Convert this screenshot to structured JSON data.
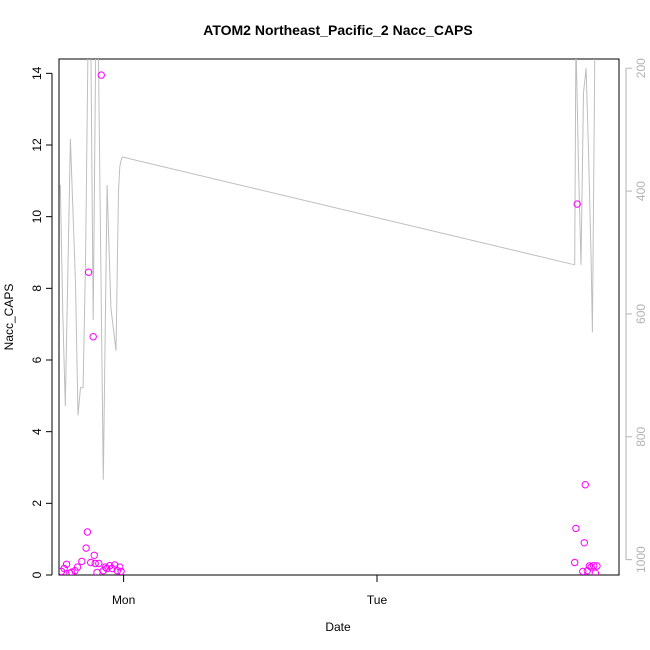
{
  "chart_data": {
    "type": "scatter",
    "title": "ATOM2 Northeast_Pacific_2 Nacc_CAPS",
    "xlabel": "Date",
    "ylabel": "Nacc_CAPS",
    "x_ticks": [
      "Mon",
      "Tue"
    ],
    "y_ticks": [
      "0",
      "2",
      "4",
      "6",
      "8",
      "10",
      "12",
      "14"
    ],
    "y_right_ticks": [
      "200",
      "400",
      "600",
      "800",
      "1000"
    ],
    "xlim": [
      -0.255,
      1.955
    ],
    "ylim": [
      0,
      14.4
    ],
    "y_right_lim": [
      1025,
      185
    ],
    "point_color": "#ff00ff",
    "line_color": "#bebebe",
    "series": [
      {
        "kind": "points",
        "axis": "left",
        "x": [
          -0.245,
          -0.235,
          -0.225,
          -0.212,
          -0.205,
          -0.192,
          -0.182,
          -0.165,
          -0.148,
          -0.143,
          -0.138,
          -0.13,
          -0.12,
          -0.116,
          -0.112,
          -0.105,
          -0.098,
          -0.088,
          -0.08,
          -0.072,
          -0.066,
          -0.055,
          -0.045,
          -0.035,
          -0.025,
          -0.015,
          -0.01,
          1.78,
          1.785,
          1.79,
          1.812,
          1.818,
          1.822,
          1.83,
          1.838,
          1.845,
          1.855,
          1.862,
          1.868
        ],
        "y": [
          0.1,
          0.18,
          0.3,
          0.05,
          0.08,
          0.12,
          0.22,
          0.38,
          0.75,
          1.2,
          8.45,
          0.35,
          6.65,
          0.55,
          0.32,
          0.07,
          0.32,
          13.95,
          0.12,
          0.22,
          0.18,
          0.26,
          0.18,
          0.28,
          0.12,
          0.22,
          0.1,
          0.35,
          1.3,
          10.35,
          0.1,
          0.9,
          2.52,
          0.12,
          0.25,
          0.22,
          0.26,
          0.05,
          0.25
        ]
      },
      {
        "kind": "line",
        "axis": "right",
        "x": [
          -0.25,
          -0.24,
          -0.23,
          -0.21,
          -0.19,
          -0.18,
          -0.17,
          -0.16,
          -0.15,
          -0.14,
          -0.13,
          -0.12,
          -0.11,
          -0.1,
          -0.08,
          -0.065,
          -0.05,
          -0.03,
          -0.02,
          -0.015,
          -0.01,
          -0.005,
          0.0,
          1.78,
          1.785,
          1.795,
          1.805,
          1.815,
          1.825,
          1.835,
          1.845,
          1.85,
          1.86,
          1.875
        ],
        "y": [
          390,
          600,
          750,
          315,
          550,
          765,
          720,
          720,
          505,
          150,
          130,
          610,
          170,
          160,
          870,
          390,
          590,
          660,
          400,
          360,
          350,
          345,
          345,
          520,
          150,
          360,
          520,
          240,
          200,
          340,
          510,
          630,
          160,
          160
        ]
      }
    ],
    "grid": false,
    "legend": "none"
  }
}
